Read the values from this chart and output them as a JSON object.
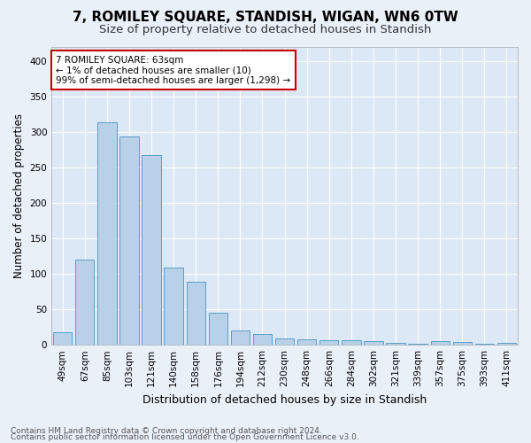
{
  "title": "7, ROMILEY SQUARE, STANDISH, WIGAN, WN6 0TW",
  "subtitle": "Size of property relative to detached houses in Standish",
  "xlabel": "Distribution of detached houses by size in Standish",
  "ylabel": "Number of detached properties",
  "categories": [
    "49sqm",
    "67sqm",
    "85sqm",
    "103sqm",
    "121sqm",
    "140sqm",
    "158sqm",
    "176sqm",
    "194sqm",
    "212sqm",
    "230sqm",
    "248sqm",
    "266sqm",
    "284sqm",
    "302sqm",
    "321sqm",
    "339sqm",
    "357sqm",
    "375sqm",
    "393sqm",
    "411sqm"
  ],
  "values": [
    18,
    120,
    313,
    294,
    267,
    109,
    89,
    45,
    20,
    15,
    9,
    8,
    7,
    6,
    5,
    3,
    2,
    5,
    4,
    2,
    3
  ],
  "bar_color": "#b8d0e8",
  "bar_edge_color": "#5a9fc8",
  "background_color": "#eaf0f8",
  "plot_bg_color": "#dce8f5",
  "grid_color": "#ffffff",
  "annotation_text": "7 ROMILEY SQUARE: 63sqm\n← 1% of detached houses are smaller (10)\n99% of semi-detached houses are larger (1,298) →",
  "annotation_box_color": "#ffffff",
  "annotation_box_edge_color": "#cc0000",
  "ylim": [
    0,
    420
  ],
  "yticks": [
    0,
    50,
    100,
    150,
    200,
    250,
    300,
    350,
    400
  ],
  "footer_line1": "Contains HM Land Registry data © Crown copyright and database right 2024.",
  "footer_line2": "Contains public sector information licensed under the Open Government Licence v3.0.",
  "title_fontsize": 11,
  "subtitle_fontsize": 9.5,
  "xlabel_fontsize": 9,
  "ylabel_fontsize": 8.5,
  "tick_fontsize": 7.5,
  "annot_fontsize": 7.5,
  "footer_fontsize": 6.5
}
